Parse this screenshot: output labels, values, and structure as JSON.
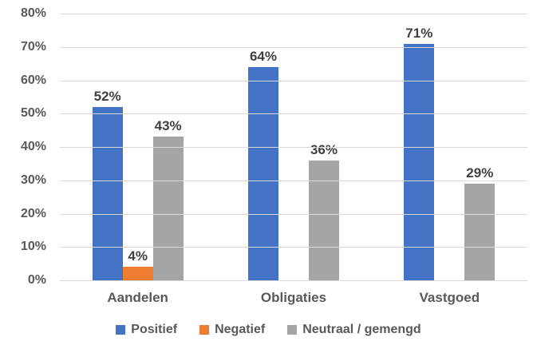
{
  "chart_data": {
    "type": "bar",
    "title": "",
    "xlabel": "",
    "ylabel": "",
    "categories": [
      "Aandelen",
      "Obligaties",
      "Vastgoed"
    ],
    "series": [
      {
        "name": "Positief",
        "color": "#4472C4",
        "values": [
          52,
          64,
          71
        ]
      },
      {
        "name": "Negatief",
        "color": "#ED7D31",
        "values": [
          4,
          null,
          null
        ]
      },
      {
        "name": "Neutraal / gemengd",
        "color": "#A5A5A5",
        "values": [
          43,
          36,
          29
        ]
      }
    ],
    "data_labels": true,
    "data_label_suffix": "%",
    "ylim": [
      0,
      80
    ],
    "ytick_step": 10,
    "ytick_labels": [
      "0%",
      "10%",
      "20%",
      "30%",
      "40%",
      "50%",
      "60%",
      "70%",
      "80%"
    ],
    "grid": true,
    "legend_position": "bottom"
  },
  "colors": {
    "background": "#FFFFFF",
    "gridline": "#D9D9D9",
    "axis_line": "#D9D9D9",
    "tick_text": "#595959",
    "category_text": "#595959",
    "legend_text": "#595959",
    "data_label_text": "#404040"
  }
}
